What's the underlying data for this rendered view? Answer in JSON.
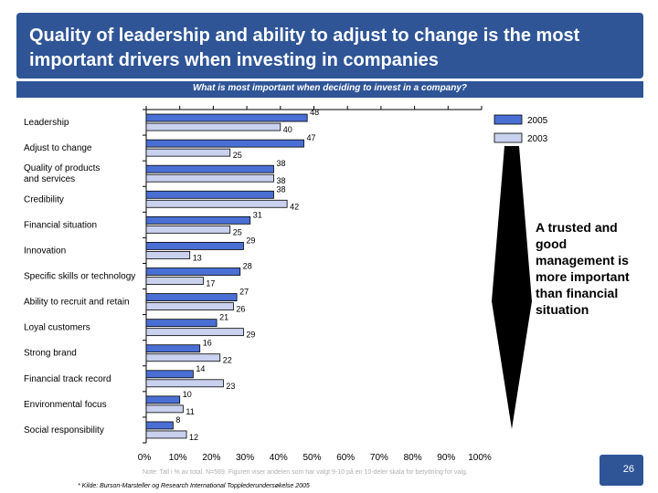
{
  "title": "Quality of leadership and ability to adjust to change is the most important drivers when investing in companies",
  "subtitle": "What is most important when deciding to invest in a company?",
  "callout": "A trusted and good management is more important than financial situation",
  "footnote": "* Kilde: Burson-Marsteller og Research International Topplederundersøkelse 2005",
  "note": "Note: Tall i % av total. N=569. Figuren viser andelen som har valgt 9-10 på en 10-deler skala for betydning for valg.",
  "page_number": "26",
  "colors": {
    "header": "#2f5597",
    "series_2005": "#4a6fd4",
    "series_2003": "#c9d1ef"
  },
  "chart_data": {
    "type": "bar",
    "orientation": "horizontal",
    "title": "What is most important when deciding to invest in a company?",
    "categories": [
      "Leadership",
      "Adjust to change",
      "Quality of  products and services",
      "Credibility",
      "Financial situation",
      "Innovation",
      "Specific skills or technology",
      "Ability to recruit and retain",
      "Loyal customers",
      "Strong brand",
      "Financial track record",
      "Environmental focus",
      "Social responsibility"
    ],
    "series": [
      {
        "name": "2005",
        "values": [
          48,
          47,
          38,
          38,
          31,
          29,
          28,
          27,
          21,
          16,
          14,
          10,
          8
        ]
      },
      {
        "name": "2003",
        "values": [
          40,
          25,
          38,
          42,
          25,
          13,
          17,
          26,
          29,
          22,
          23,
          11,
          12
        ]
      }
    ],
    "xlim": [
      0,
      100
    ],
    "x_ticks": [
      "0%",
      "10%",
      "20%",
      "30%",
      "40%",
      "50%",
      "60%",
      "70%",
      "80%",
      "90%",
      "100%"
    ],
    "legend_position": "top-right",
    "grid": false
  }
}
